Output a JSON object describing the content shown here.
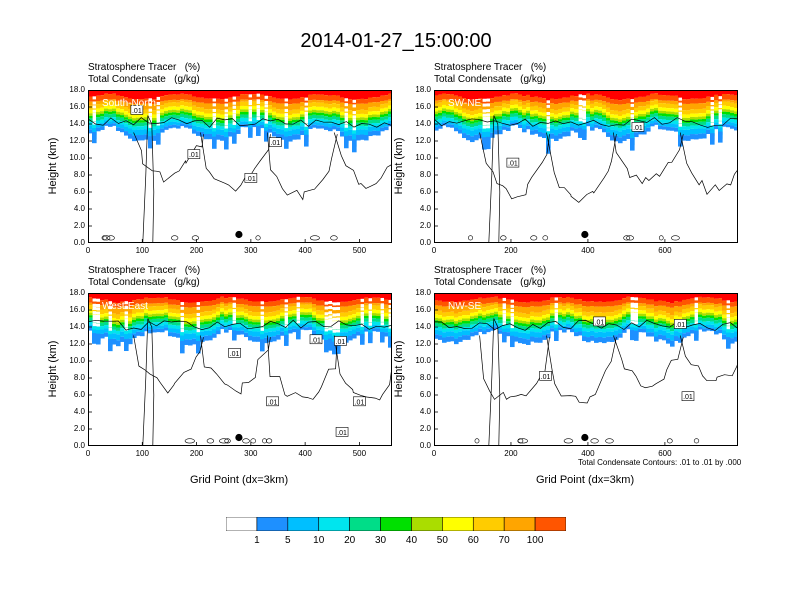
{
  "title": "2014-01-27_15:00:00",
  "colors": [
    "#ffffff",
    "#1e90ff",
    "#00bfff",
    "#00e5ee",
    "#00dd88",
    "#00e000",
    "#aadd00",
    "#ffff00",
    "#ffcc00",
    "#ffa500",
    "#ff5500",
    "#ff0000"
  ],
  "colorbar_labels": [
    "1",
    "5",
    "10",
    "20",
    "30",
    "40",
    "50",
    "60",
    "70",
    "100"
  ],
  "contour_note": "Total Condensate Contours: .01 to .01 by .000",
  "chart_data": [
    {
      "type": "heatmap",
      "field_title": "Stratosphere Tracer   (%)",
      "contour_title": "Total Condensate   (g/kg)",
      "section_label": "South-North",
      "ylabel": "Height (km)",
      "xlabel": "",
      "xlim": [
        0,
        560
      ],
      "ylim": [
        0,
        18
      ],
      "xticks": [
        "0",
        "100",
        "200",
        "300",
        "400",
        "500"
      ],
      "xtick_values": [
        0,
        100,
        200,
        300,
        400,
        500
      ],
      "yticks": [
        "0.0",
        "2.0",
        "4.0",
        "6.0",
        "8.0",
        "10.0",
        "12.0",
        "14.0",
        "16.0",
        "18.0"
      ],
      "contour_labels": [
        {
          "text": ".01",
          "x": 90,
          "y": 15.6
        },
        {
          "text": ".01",
          "x": 195,
          "y": 10.4
        },
        {
          "text": ".01",
          "x": 345,
          "y": 11.8
        },
        {
          "text": ".01",
          "x": 300,
          "y": 7.6
        }
      ],
      "marker": {
        "x": 278,
        "y": 1.0
      }
    },
    {
      "type": "heatmap",
      "field_title": "Stratosphere Tracer   (%)",
      "contour_title": "Total Condensate   (g/kg)",
      "section_label": "SW-NE",
      "ylabel": "Height (km)",
      "xlabel": "",
      "xlim": [
        0,
        790
      ],
      "ylim": [
        0,
        18
      ],
      "xticks": [
        "0",
        "200",
        "400",
        "600"
      ],
      "xtick_values": [
        0,
        200,
        400,
        600
      ],
      "yticks": [
        "0.0",
        "2.0",
        "4.0",
        "6.0",
        "8.0",
        "10.0",
        "12.0",
        "14.0",
        "16.0",
        "18.0"
      ],
      "contour_labels": [
        {
          "text": ".01",
          "x": 205,
          "y": 9.4
        },
        {
          "text": ".01",
          "x": 530,
          "y": 13.6
        }
      ],
      "marker": {
        "x": 392,
        "y": 1.0
      }
    },
    {
      "type": "heatmap",
      "field_title": "Stratosphere Tracer   (%)",
      "contour_title": "Total Condensate   (g/kg)",
      "section_label": "West-East",
      "ylabel": "Height (km)",
      "xlabel": "Grid Point (dx=3km)",
      "xlim": [
        0,
        560
      ],
      "ylim": [
        0,
        18
      ],
      "xticks": [
        "0",
        "100",
        "200",
        "300",
        "400",
        "500"
      ],
      "xtick_values": [
        0,
        100,
        200,
        300,
        400,
        500
      ],
      "yticks": [
        "0.0",
        "2.0",
        "4.0",
        "6.0",
        "8.0",
        "10.0",
        "12.0",
        "14.0",
        "16.0",
        "18.0"
      ],
      "contour_labels": [
        {
          "text": ".01",
          "x": 270,
          "y": 10.9
        },
        {
          "text": ".01",
          "x": 420,
          "y": 12.5
        },
        {
          "text": ".01",
          "x": 465,
          "y": 12.3
        },
        {
          "text": ".01",
          "x": 340,
          "y": 5.2
        },
        {
          "text": ".01",
          "x": 500,
          "y": 5.2
        },
        {
          "text": ".01",
          "x": 468,
          "y": 1.6
        }
      ],
      "marker": {
        "x": 278,
        "y": 1.0
      }
    },
    {
      "type": "heatmap",
      "field_title": "Stratosphere Tracer   (%)",
      "contour_title": "Total Condensate   (g/kg)",
      "section_label": "NW-SE",
      "ylabel": "Height (km)",
      "xlabel": "Grid Point (dx=3km)",
      "xlim": [
        0,
        790
      ],
      "ylim": [
        0,
        18
      ],
      "xticks": [
        "0",
        "200",
        "400",
        "600"
      ],
      "xtick_values": [
        0,
        200,
        400,
        600
      ],
      "yticks": [
        "0.0",
        "2.0",
        "4.0",
        "6.0",
        "8.0",
        "10.0",
        "12.0",
        "14.0",
        "16.0",
        "18.0"
      ],
      "contour_labels": [
        {
          "text": ".01",
          "x": 430,
          "y": 14.6
        },
        {
          "text": ".01",
          "x": 640,
          "y": 14.3
        },
        {
          "text": ".01",
          "x": 290,
          "y": 8.2
        },
        {
          "text": ".01",
          "x": 660,
          "y": 5.8
        }
      ],
      "marker": {
        "x": 392,
        "y": 1.0
      }
    }
  ]
}
